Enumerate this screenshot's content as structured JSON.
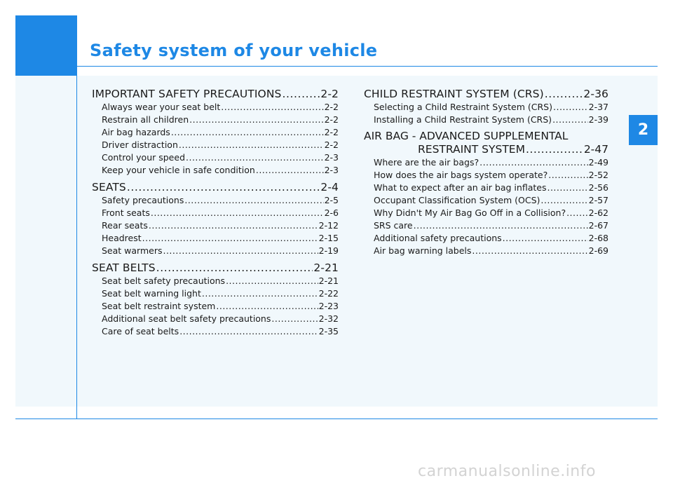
{
  "colors": {
    "accent": "#1e88e5"
  },
  "header": {
    "title": "Safety system of your vehicle"
  },
  "chapter_tab": "2",
  "toc_left": [
    {
      "title": "IMPORTANT SAFETY PRECAUTIONS",
      "page": "2-2",
      "items": [
        {
          "title": "Always wear your seat belt",
          "page": "2-2"
        },
        {
          "title": "Restrain all children",
          "page": "2-2"
        },
        {
          "title": "Air bag hazards",
          "page": "2-2"
        },
        {
          "title": "Driver distraction",
          "page": "2-2"
        },
        {
          "title": "Control your speed",
          "page": "2-3"
        },
        {
          "title": "Keep your vehicle in safe condition",
          "page": "2-3"
        }
      ]
    },
    {
      "title": "SEATS",
      "page": "2-4",
      "items": [
        {
          "title": "Safety precautions",
          "page": "2-5"
        },
        {
          "title": "Front seats",
          "page": "2-6"
        },
        {
          "title": "Rear seats",
          "page": "2-12"
        },
        {
          "title": "Headrest",
          "page": "2-15"
        },
        {
          "title": "Seat warmers",
          "page": "2-19"
        }
      ]
    },
    {
      "title": "SEAT BELTS",
      "page": "2-21",
      "items": [
        {
          "title": "Seat belt safety precautions",
          "page": "2-21"
        },
        {
          "title": "Seat belt warning light",
          "page": "2-22"
        },
        {
          "title": "Seat belt restraint system",
          "page": "2-23"
        },
        {
          "title": "Additional seat belt safety precautions",
          "page": "2-32"
        },
        {
          "title": "Care of seat belts",
          "page": "2-35"
        }
      ]
    }
  ],
  "toc_right": [
    {
      "title": "CHILD RESTRAINT SYSTEM (CRS)",
      "page": "2-36",
      "items": [
        {
          "title": "Selecting a Child Restraint System (CRS)",
          "page": "2-37"
        },
        {
          "title": "Installing a Child Restraint System (CRS)",
          "page": "2-39"
        }
      ]
    },
    {
      "title_line1": "AIR BAG - ADVANCED SUPPLEMENTAL",
      "title_line2": "RESTRAINT SYSTEM",
      "page": "2-47",
      "items": [
        {
          "title": "Where are the air bags?",
          "page": "2-49"
        },
        {
          "title": "How does the air bags system operate?",
          "page": "2-52"
        },
        {
          "title": "What to expect after an air bag inflates",
          "page": "2-56"
        },
        {
          "title": "Occupant Classification System (OCS)",
          "page": "2-57"
        },
        {
          "title": "Why Didn't My Air Bag Go Off in a Collision?",
          "page": "2-62"
        },
        {
          "title": "SRS care",
          "page": "2-67"
        },
        {
          "title": "Additional safety precautions",
          "page": "2-68"
        },
        {
          "title": "Air bag warning labels",
          "page": "2-69"
        }
      ]
    }
  ],
  "watermark": "carmanualsonline.info"
}
